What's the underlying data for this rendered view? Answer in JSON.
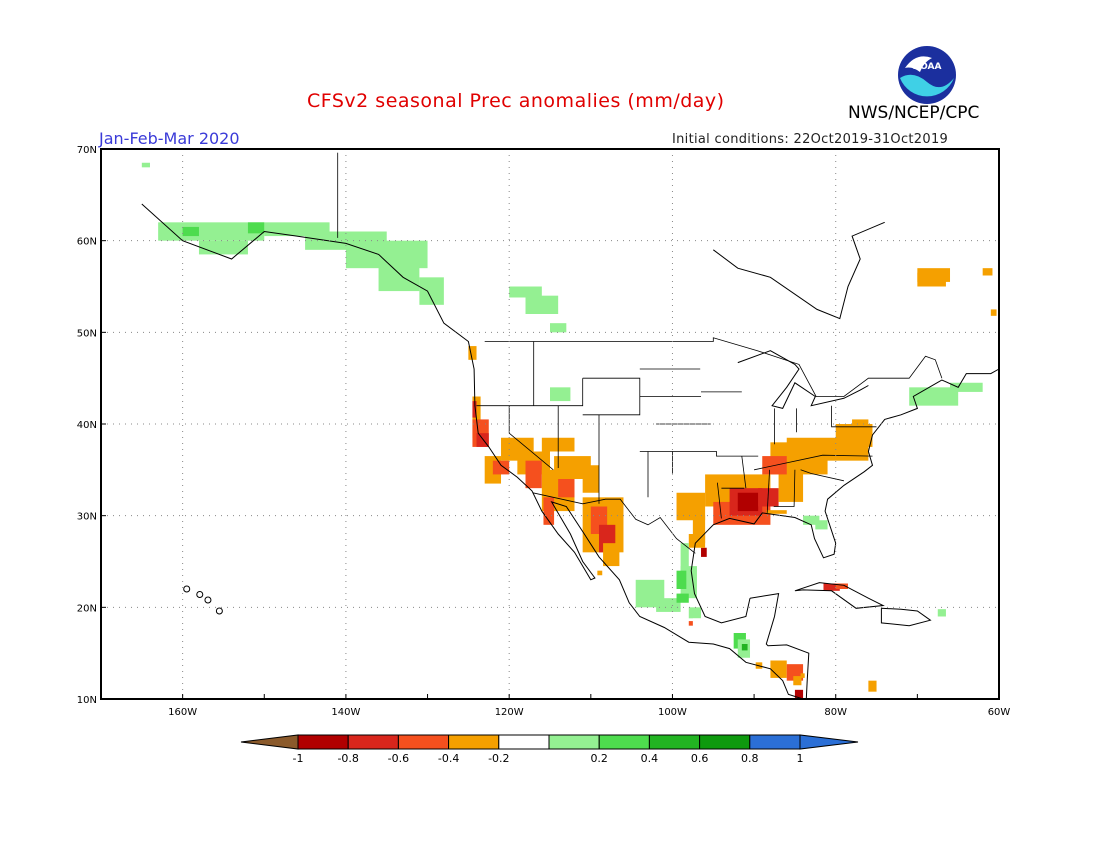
{
  "title": "CFSv2 seasonal Prec anomalies (mm/day)",
  "period": "Jan-Feb-Mar 2020",
  "initial_conditions": "Initial conditions: 22Oct2019-31Oct2019",
  "agency": "NWS/NCEP/CPC",
  "logo_text": "NOAA",
  "map": {
    "lon_labels": [
      "160W",
      "140W",
      "120W",
      "100W",
      "80W",
      "60W"
    ],
    "lat_labels": [
      "70N",
      "60N",
      "50N",
      "40N",
      "30N",
      "20N",
      "10N"
    ],
    "gridlines": "dotted"
  },
  "colorbar": {
    "tick_labels": [
      "-1",
      "-0.8",
      "-0.6",
      "-0.4",
      "-0.2",
      "0.2",
      "0.4",
      "0.6",
      "0.8",
      "1"
    ],
    "colors": [
      "#8b5a2b",
      "#b10000",
      "#d9261c",
      "#f5501e",
      "#f5a000",
      "#ffffff",
      "#94f092",
      "#4edc4e",
      "#22b422",
      "#0e9a0e",
      "#2b6fd6"
    ]
  }
}
